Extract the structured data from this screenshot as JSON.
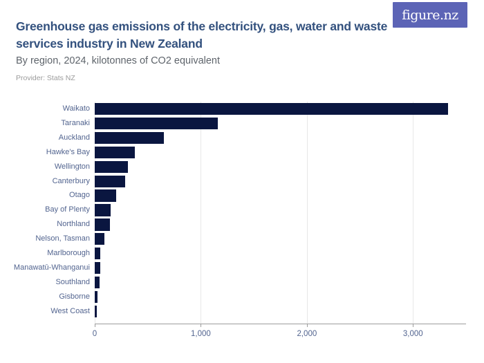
{
  "header": {
    "title": "Greenhouse gas emissions of the electricity, gas, water and waste services industry in New Zealand",
    "subtitle": "By region, 2024, kilotonnes of CO2 equivalent",
    "provider": "Provider: Stats NZ",
    "logo_text": "figure.nz"
  },
  "colors": {
    "bar": "#0a1640",
    "brand": "#5c64b6",
    "title_text": "#33517e",
    "axis_text": "#52648f",
    "grid": "#e7e7e7",
    "axis_line": "#9c9c9c"
  },
  "chart_data": {
    "type": "bar",
    "orientation": "horizontal",
    "title": "Greenhouse gas emissions of the electricity, gas, water and waste services industry in New Zealand",
    "subtitle": "By region, 2024, kilotonnes of CO2 equivalent",
    "units": "kilotonnes of CO2 equivalent",
    "categories": [
      "Waikato",
      "Taranaki",
      "Auckland",
      "Hawke's Bay",
      "Wellington",
      "Canterbury",
      "Otago",
      "Bay of Plenty",
      "Northland",
      "Nelson, Tasman",
      "Marlborough",
      "Manawatū-Whanganui",
      "Southland",
      "Gisborne",
      "West Coast"
    ],
    "values": [
      3330,
      1160,
      650,
      380,
      310,
      290,
      200,
      150,
      145,
      90,
      52,
      50,
      45,
      25,
      20
    ],
    "xlabel": "",
    "ylabel": "",
    "xlim": [
      0,
      3500
    ],
    "xticks": [
      0,
      1000,
      2000,
      3000
    ],
    "xtick_labels": [
      "0",
      "1,000",
      "2,000",
      "3,000"
    ],
    "grid": true,
    "legend": false
  }
}
